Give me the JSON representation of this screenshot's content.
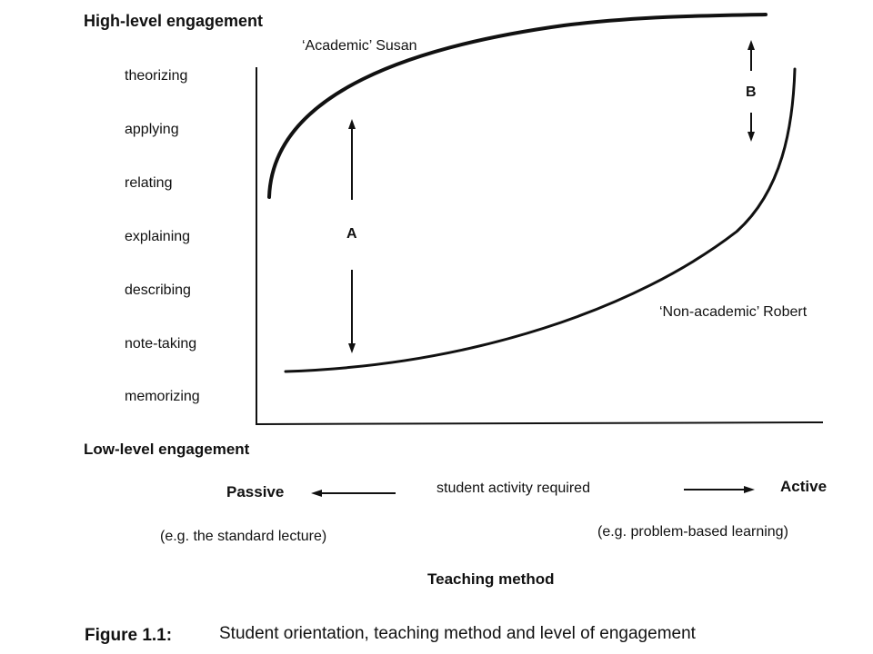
{
  "y_axis": {
    "top_label": "High-level engagement",
    "bottom_label": "Low-level engagement",
    "levels": [
      "theorizing",
      "applying",
      "relating",
      "explaining",
      "describing",
      "note-taking",
      "memorizing"
    ]
  },
  "curves": {
    "susan_label": "‘Academic’ Susan",
    "robert_label": "‘Non-academic’ Robert",
    "gap_a_label": "A",
    "gap_b_label": "B"
  },
  "x_axis": {
    "passive_label": "Passive",
    "active_label": "Active",
    "center_label": "student activity required",
    "passive_example": "(e.g. the standard lecture)",
    "active_example": "(e.g. problem-based learning)",
    "title": "Teaching method"
  },
  "caption": {
    "number": "Figure 1.1:",
    "text": "Student orientation, teaching method and level of engagement"
  }
}
